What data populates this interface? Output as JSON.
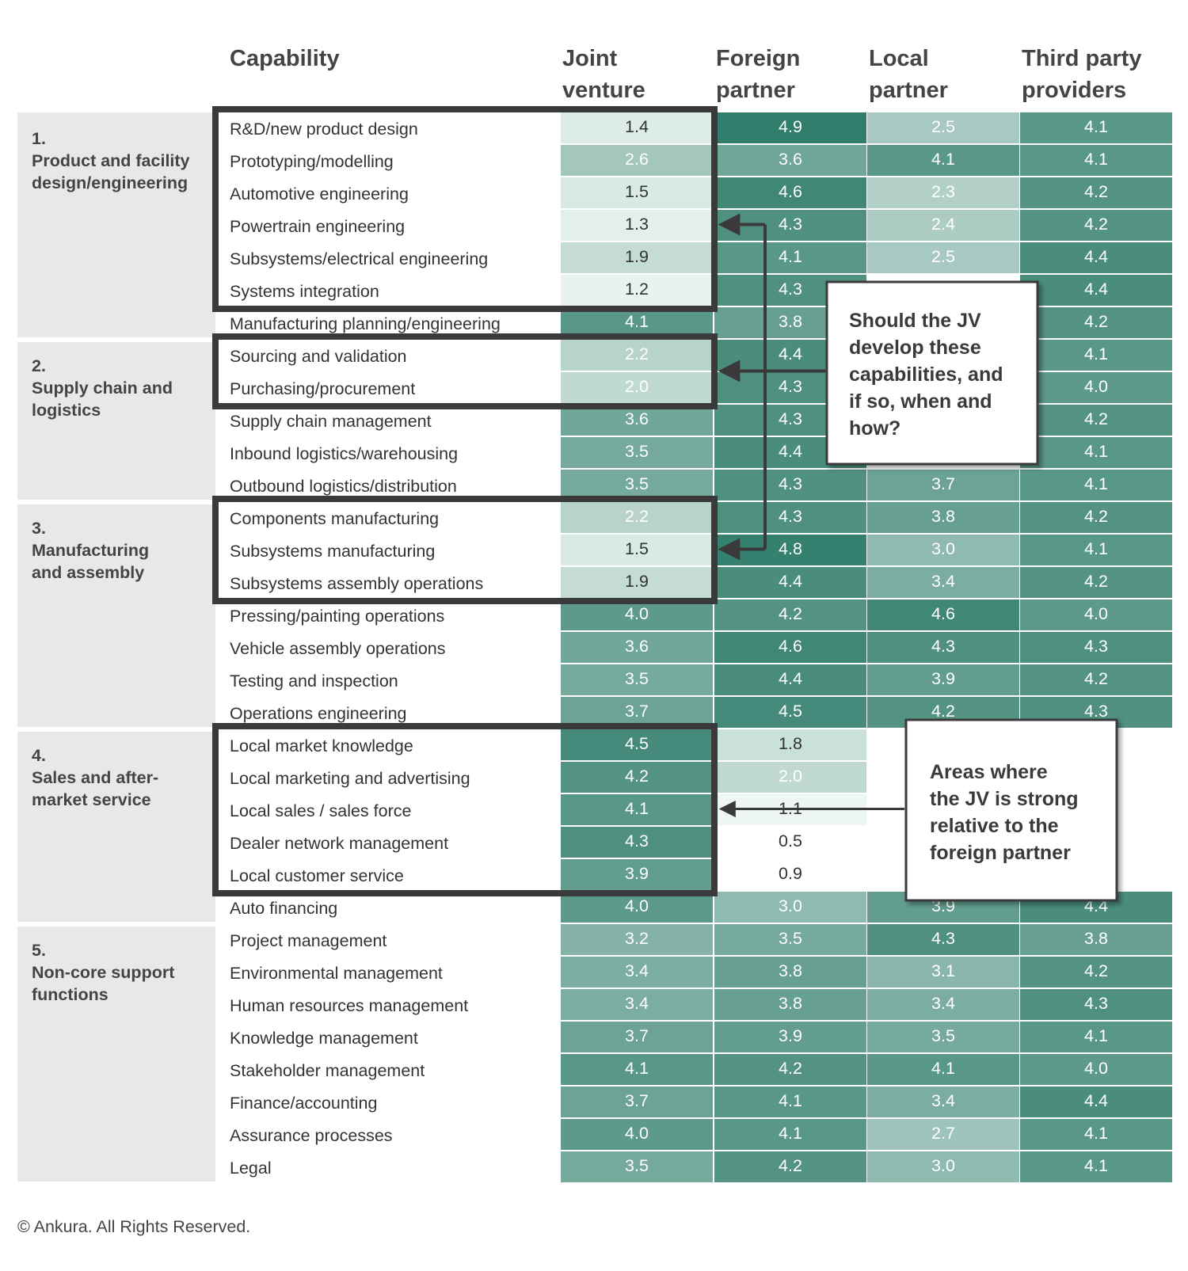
{
  "chart_data": {
    "type": "heatmap",
    "header": {
      "capability": "Capability",
      "columns": [
        [
          "Joint",
          "venture"
        ],
        [
          "Foreign",
          "partner"
        ],
        [
          "Local",
          "partner"
        ],
        [
          "Third party",
          "providers"
        ]
      ]
    },
    "groups": [
      {
        "number": "1.",
        "name": [
          "Product and facility",
          "design/engineering"
        ],
        "rows": [
          {
            "label": "R&D/new product design",
            "values": [
              1.4,
              4.9,
              2.5,
              4.1
            ]
          },
          {
            "label": "Prototyping/modelling",
            "values": [
              2.6,
              3.6,
              4.1,
              4.1
            ]
          },
          {
            "label": "Automotive engineering",
            "values": [
              1.5,
              4.6,
              2.3,
              4.2
            ]
          },
          {
            "label": "Powertrain engineering",
            "values": [
              1.3,
              4.3,
              2.4,
              4.2
            ]
          },
          {
            "label": "Subsystems/electrical engineering",
            "values": [
              1.9,
              4.1,
              2.5,
              4.4
            ]
          },
          {
            "label": "Systems integration",
            "values": [
              1.2,
              4.3,
              null,
              4.4
            ]
          },
          {
            "label": "Manufacturing planning/engineering",
            "values": [
              4.1,
              3.8,
              null,
              4.2
            ]
          }
        ]
      },
      {
        "number": "2.",
        "name": [
          "Supply chain  and",
          "logistics"
        ],
        "rows": [
          {
            "label": "Sourcing and validation",
            "values": [
              2.2,
              4.4,
              null,
              4.1
            ]
          },
          {
            "label": "Purchasing/procurement",
            "values": [
              2.0,
              4.3,
              null,
              4.0
            ]
          },
          {
            "label": "Supply chain management",
            "values": [
              3.6,
              4.3,
              null,
              4.2
            ]
          },
          {
            "label": "Inbound logistics/warehousing",
            "values": [
              3.5,
              4.4,
              null,
              4.1
            ]
          },
          {
            "label": "Outbound logistics/distribution",
            "values": [
              3.5,
              4.3,
              3.7,
              4.1
            ]
          }
        ]
      },
      {
        "number": "3.",
        "name": [
          "Manufacturing",
          "and assembly"
        ],
        "rows": [
          {
            "label": "Components manufacturing",
            "values": [
              2.2,
              4.3,
              3.8,
              4.2
            ]
          },
          {
            "label": "Subsystems manufacturing",
            "values": [
              1.5,
              4.8,
              3.0,
              4.1
            ]
          },
          {
            "label": "Subsystems assembly operations",
            "values": [
              1.9,
              4.4,
              3.4,
              4.2
            ]
          },
          {
            "label": "Pressing/painting operations",
            "values": [
              4.0,
              4.2,
              4.6,
              4.0
            ]
          },
          {
            "label": "Vehicle assembly operations",
            "values": [
              3.6,
              4.6,
              4.3,
              4.3
            ]
          },
          {
            "label": "Testing and inspection",
            "values": [
              3.5,
              4.4,
              3.9,
              4.2
            ]
          },
          {
            "label": "Operations engineering",
            "values": [
              3.7,
              4.5,
              4.2,
              4.3
            ]
          }
        ]
      },
      {
        "number": "4.",
        "name": [
          "Sales and after-",
          "market service"
        ],
        "rows": [
          {
            "label": "Local market knowledge",
            "values": [
              4.5,
              1.8,
              null,
              null
            ]
          },
          {
            "label": "Local marketing and advertising",
            "values": [
              4.2,
              2.0,
              null,
              null
            ]
          },
          {
            "label": "Local sales / sales force",
            "values": [
              4.1,
              1.1,
              null,
              null
            ]
          },
          {
            "label": "Dealer network management",
            "values": [
              4.3,
              0.5,
              null,
              null
            ]
          },
          {
            "label": "Local customer service",
            "values": [
              3.9,
              0.9,
              null,
              null
            ]
          },
          {
            "label": "Auto financing",
            "values": [
              4.0,
              3.0,
              3.9,
              4.4
            ]
          }
        ]
      },
      {
        "number": "5.",
        "name": [
          "Non-core support",
          "functions"
        ],
        "rows": [
          {
            "label": "Project management",
            "values": [
              3.2,
              3.5,
              4.3,
              3.8
            ]
          },
          {
            "label": "Environmental management",
            "values": [
              3.4,
              3.8,
              3.1,
              4.2
            ]
          },
          {
            "label": "Human resources management",
            "values": [
              3.4,
              3.8,
              3.4,
              4.3
            ]
          },
          {
            "label": "Knowledge management",
            "values": [
              3.7,
              3.9,
              3.5,
              4.1
            ]
          },
          {
            "label": "Stakeholder management",
            "values": [
              4.1,
              4.2,
              4.1,
              4.0
            ]
          },
          {
            "label": "Finance/accounting",
            "values": [
              3.7,
              4.1,
              3.4,
              4.4
            ]
          },
          {
            "label": "Assurance processes",
            "values": [
              4.0,
              4.1,
              2.7,
              4.1
            ]
          },
          {
            "label": "Legal",
            "values": [
              3.5,
              4.2,
              3.0,
              4.1
            ]
          }
        ]
      }
    ],
    "callouts": [
      {
        "lines": [
          "Should the JV",
          "develop these",
          "capabilities, and",
          "if so, when and",
          "how?"
        ]
      },
      {
        "lines": [
          "Areas where",
          "the JV is strong",
          "relative to the",
          "foreign partner"
        ]
      }
    ]
  },
  "footer": {
    "credit": "© Ankura. All Rights Reserved."
  },
  "colors": {
    "group_band": "#e8e8e8",
    "box_stroke": "#3a3a3a",
    "scale_low": "#f2f9f6",
    "scale_high": "#2c7a68",
    "text_dark": "#333333",
    "text_light": "#ffffff"
  }
}
